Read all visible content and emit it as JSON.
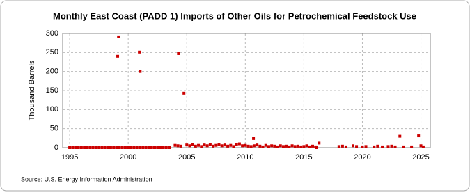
{
  "chart_data": {
    "type": "scatter",
    "title": "Monthly East Coast (PADD 1) Imports of Other Oils for Petrochemical Feedstock Use",
    "y_label": "Thousand Barrels",
    "source": "Source: U.S. Energy Information Administration",
    "color": "#cc0000",
    "grid": true,
    "xlim": [
      1994.4,
      2025.8
    ],
    "ylim": [
      0,
      300
    ],
    "xticks": [
      1995,
      2000,
      2005,
      2010,
      2015,
      2020,
      2025
    ],
    "yticks": [
      0,
      50,
      100,
      150,
      200,
      250,
      300
    ],
    "x": [
      1995,
      1995.25,
      1995.5,
      1995.75,
      1996,
      1996.25,
      1996.5,
      1996.75,
      1997,
      1997.25,
      1997.5,
      1997.75,
      1998,
      1998.25,
      1998.5,
      1998.75,
      1999,
      1999.1,
      1999.17,
      1999.25,
      1999.5,
      1999.75,
      2000,
      2000.25,
      2000.5,
      2000.75,
      2000.95,
      2001,
      2001.02,
      2001.25,
      2001.5,
      2001.75,
      2002,
      2002.25,
      2002.5,
      2002.75,
      2003,
      2003.25,
      2003.5,
      2004,
      2004.25,
      2004.29,
      2004.5,
      2004.76,
      2005,
      2005.25,
      2005.5,
      2005.75,
      2006,
      2006.25,
      2006.5,
      2006.75,
      2007,
      2007.25,
      2007.5,
      2007.75,
      2008,
      2008.25,
      2008.5,
      2008.75,
      2009,
      2009.25,
      2009.5,
      2009.75,
      2010,
      2010.25,
      2010.5,
      2010.7,
      2010.75,
      2011,
      2011.25,
      2011.5,
      2011.75,
      2012,
      2012.25,
      2012.5,
      2012.75,
      2013,
      2013.25,
      2013.5,
      2013.75,
      2014,
      2014.25,
      2014.5,
      2014.75,
      2015,
      2015.25,
      2015.5,
      2015.75,
      2016,
      2016.1,
      2016.3,
      2018,
      2018.3,
      2018.6,
      2019.2,
      2019.5,
      2020,
      2020.3,
      2021,
      2021.3,
      2021.7,
      2022.2,
      2022.5,
      2022.8,
      2023.2,
      2023.5,
      2024.2,
      2024.8,
      2025,
      2025.2
    ],
    "values": [
      0,
      0,
      0,
      0,
      0,
      0,
      0,
      0,
      0,
      0,
      0,
      0,
      0,
      0,
      0,
      0,
      0,
      240,
      291,
      0,
      0,
      0,
      0,
      0,
      0,
      0,
      251,
      0,
      200,
      0,
      0,
      0,
      0,
      0,
      0,
      0,
      0,
      0,
      0,
      6,
      5,
      247,
      4,
      143,
      7,
      5,
      8,
      4,
      6,
      3,
      7,
      5,
      8,
      4,
      6,
      9,
      5,
      7,
      4,
      6,
      3,
      8,
      10,
      5,
      6,
      4,
      3,
      24,
      5,
      7,
      4,
      2,
      6,
      3,
      5,
      4,
      2,
      5,
      3,
      4,
      2,
      5,
      3,
      4,
      2,
      3,
      5,
      2,
      4,
      2,
      0,
      12,
      3,
      4,
      2,
      5,
      3,
      2,
      3,
      2,
      4,
      2,
      3,
      4,
      2,
      30,
      2,
      2,
      31,
      5,
      2
    ]
  }
}
